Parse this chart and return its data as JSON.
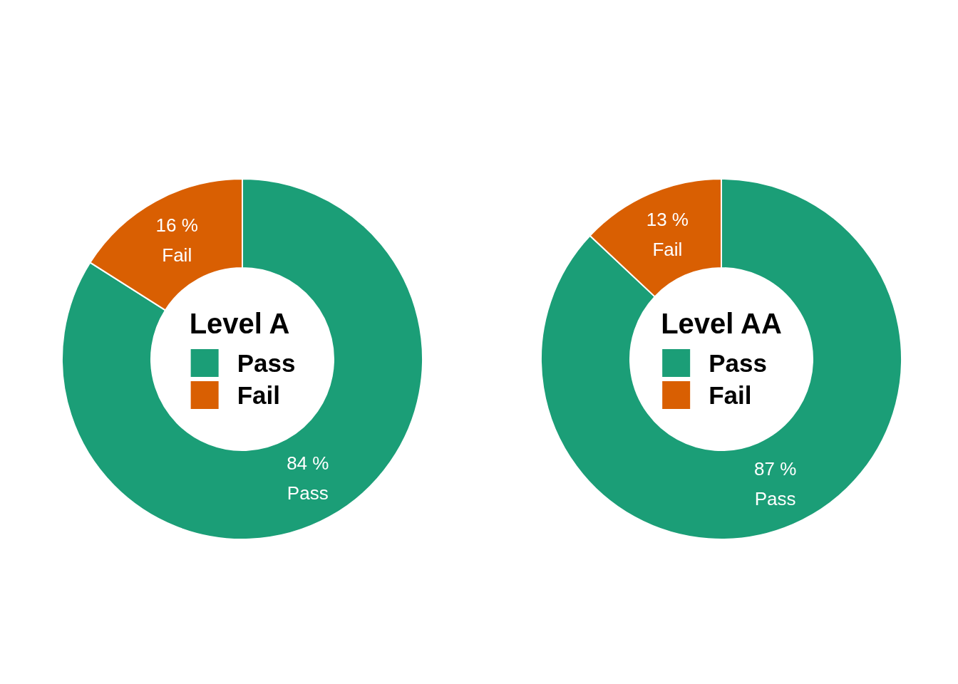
{
  "chart_data": [
    {
      "type": "donut",
      "legend_title": "Level A",
      "categories": [
        "Pass",
        "Fail"
      ],
      "values": [
        84,
        16
      ],
      "value_labels": [
        "84 %",
        "16 %"
      ],
      "colors": [
        "#1b9e77",
        "#d95f02"
      ],
      "legend": "center"
    },
    {
      "type": "donut",
      "legend_title": "Level AA",
      "categories": [
        "Pass",
        "Fail"
      ],
      "values": [
        87,
        13
      ],
      "value_labels": [
        "87 %",
        "13 %"
      ],
      "colors": [
        "#1b9e77",
        "#d95f02"
      ],
      "legend": "center"
    }
  ]
}
